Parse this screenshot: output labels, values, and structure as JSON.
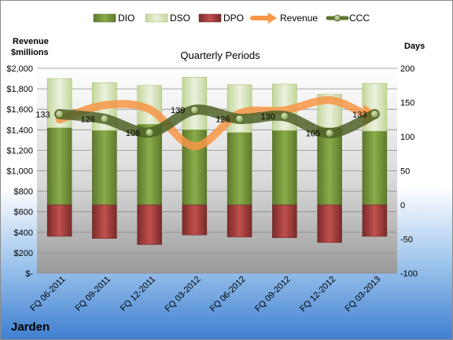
{
  "company": "Jarden",
  "chart_data": {
    "type": "bar",
    "title": "Quarterly Periods",
    "categories": [
      "FQ 06-2011",
      "FQ 09-2011",
      "FQ 12-2011",
      "FQ 03-2012",
      "FQ 06-2012",
      "FQ 09-2012",
      "FQ 12-2012",
      "FQ 03-2013"
    ],
    "left_axis": {
      "label_line1": "Revenue",
      "label_line2": "$millions",
      "range": [
        0,
        2000
      ],
      "ticks": [
        {
          "value": 0,
          "label": "$-"
        },
        {
          "value": 200,
          "label": "$200"
        },
        {
          "value": 400,
          "label": "$400"
        },
        {
          "value": 600,
          "label": "$600"
        },
        {
          "value": 800,
          "label": "$800"
        },
        {
          "value": 1000,
          "label": "$1,000"
        },
        {
          "value": 1200,
          "label": "$1,200"
        },
        {
          "value": 1400,
          "label": "$1,400"
        },
        {
          "value": 1600,
          "label": "$1,600"
        },
        {
          "value": 1800,
          "label": "$1,800"
        },
        {
          "value": 2000,
          "label": "$2,000"
        }
      ]
    },
    "right_axis": {
      "label": "Days",
      "range": [
        -100,
        200
      ],
      "ticks": [
        -100,
        -50,
        0,
        50,
        100,
        150,
        200
      ]
    },
    "series": [
      {
        "name": "DIO",
        "axis": "days",
        "color": "#76923c",
        "values": [
          113,
          109,
          118,
          110,
          106,
          109,
          113,
          108
        ]
      },
      {
        "name": "DSO",
        "axis": "days",
        "color": "#d7e4bd",
        "values": [
          72,
          70,
          57,
          77,
          70,
          68,
          49,
          70
        ]
      },
      {
        "name": "DPO",
        "axis": "days",
        "color": "#953735",
        "values": [
          -46,
          -49,
          -58,
          -44,
          -47,
          -48,
          -55,
          -46
        ]
      },
      {
        "name": "Revenue",
        "axis": "revenue",
        "color": "#f79646",
        "values": [
          1500,
          1640,
          1600,
          1240,
          1560,
          1590,
          1690,
          1540
        ]
      },
      {
        "name": "CCC",
        "axis": "days",
        "color": "#5f7530",
        "values": [
          133,
          126,
          106,
          139,
          126,
          130,
          105,
          133
        ]
      }
    ],
    "ccc_labels": [
      "133",
      "126",
      "106",
      "139",
      "126",
      "130",
      "105",
      "133"
    ],
    "legend_position": "top",
    "grid": true
  }
}
